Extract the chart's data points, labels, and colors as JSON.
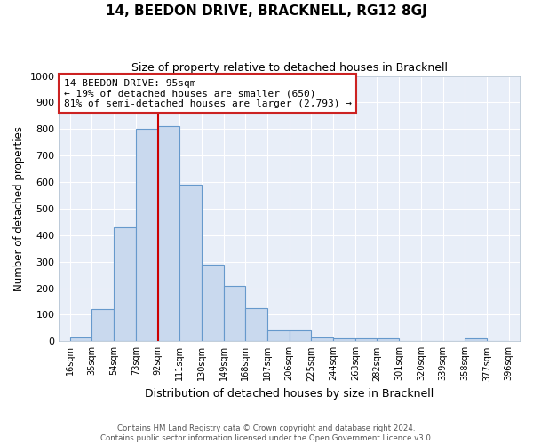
{
  "title": "14, BEEDON DRIVE, BRACKNELL, RG12 8GJ",
  "subtitle": "Size of property relative to detached houses in Bracknell",
  "xlabel": "Distribution of detached houses by size in Bracknell",
  "ylabel": "Number of detached properties",
  "bar_labels": [
    "16sqm",
    "35sqm",
    "54sqm",
    "73sqm",
    "92sqm",
    "111sqm",
    "130sqm",
    "149sqm",
    "168sqm",
    "187sqm",
    "206sqm",
    "225sqm",
    "244sqm",
    "263sqm",
    "282sqm",
    "301sqm",
    "320sqm",
    "339sqm",
    "358sqm",
    "377sqm",
    "396sqm"
  ],
  "bar_values": [
    15,
    120,
    430,
    800,
    810,
    590,
    290,
    210,
    125,
    40,
    40,
    15,
    10,
    10,
    10,
    0,
    0,
    0,
    10,
    0
  ],
  "bar_color": "#c9d9ee",
  "bar_edge_color": "#6699cc",
  "vline_color": "#cc0000",
  "annotation_text": "14 BEEDON DRIVE: 95sqm\n← 19% of detached houses are smaller (650)\n81% of semi-detached houses are larger (2,793) →",
  "annotation_box_color": "white",
  "annotation_box_edge": "#cc2222",
  "ylim": [
    0,
    1000
  ],
  "yticks": [
    0,
    100,
    200,
    300,
    400,
    500,
    600,
    700,
    800,
    900,
    1000
  ],
  "plot_bg_color": "#e8eef8",
  "grid_color": "#ffffff",
  "footer1": "Contains HM Land Registry data © Crown copyright and database right 2024.",
  "footer2": "Contains public sector information licensed under the Open Government Licence v3.0."
}
